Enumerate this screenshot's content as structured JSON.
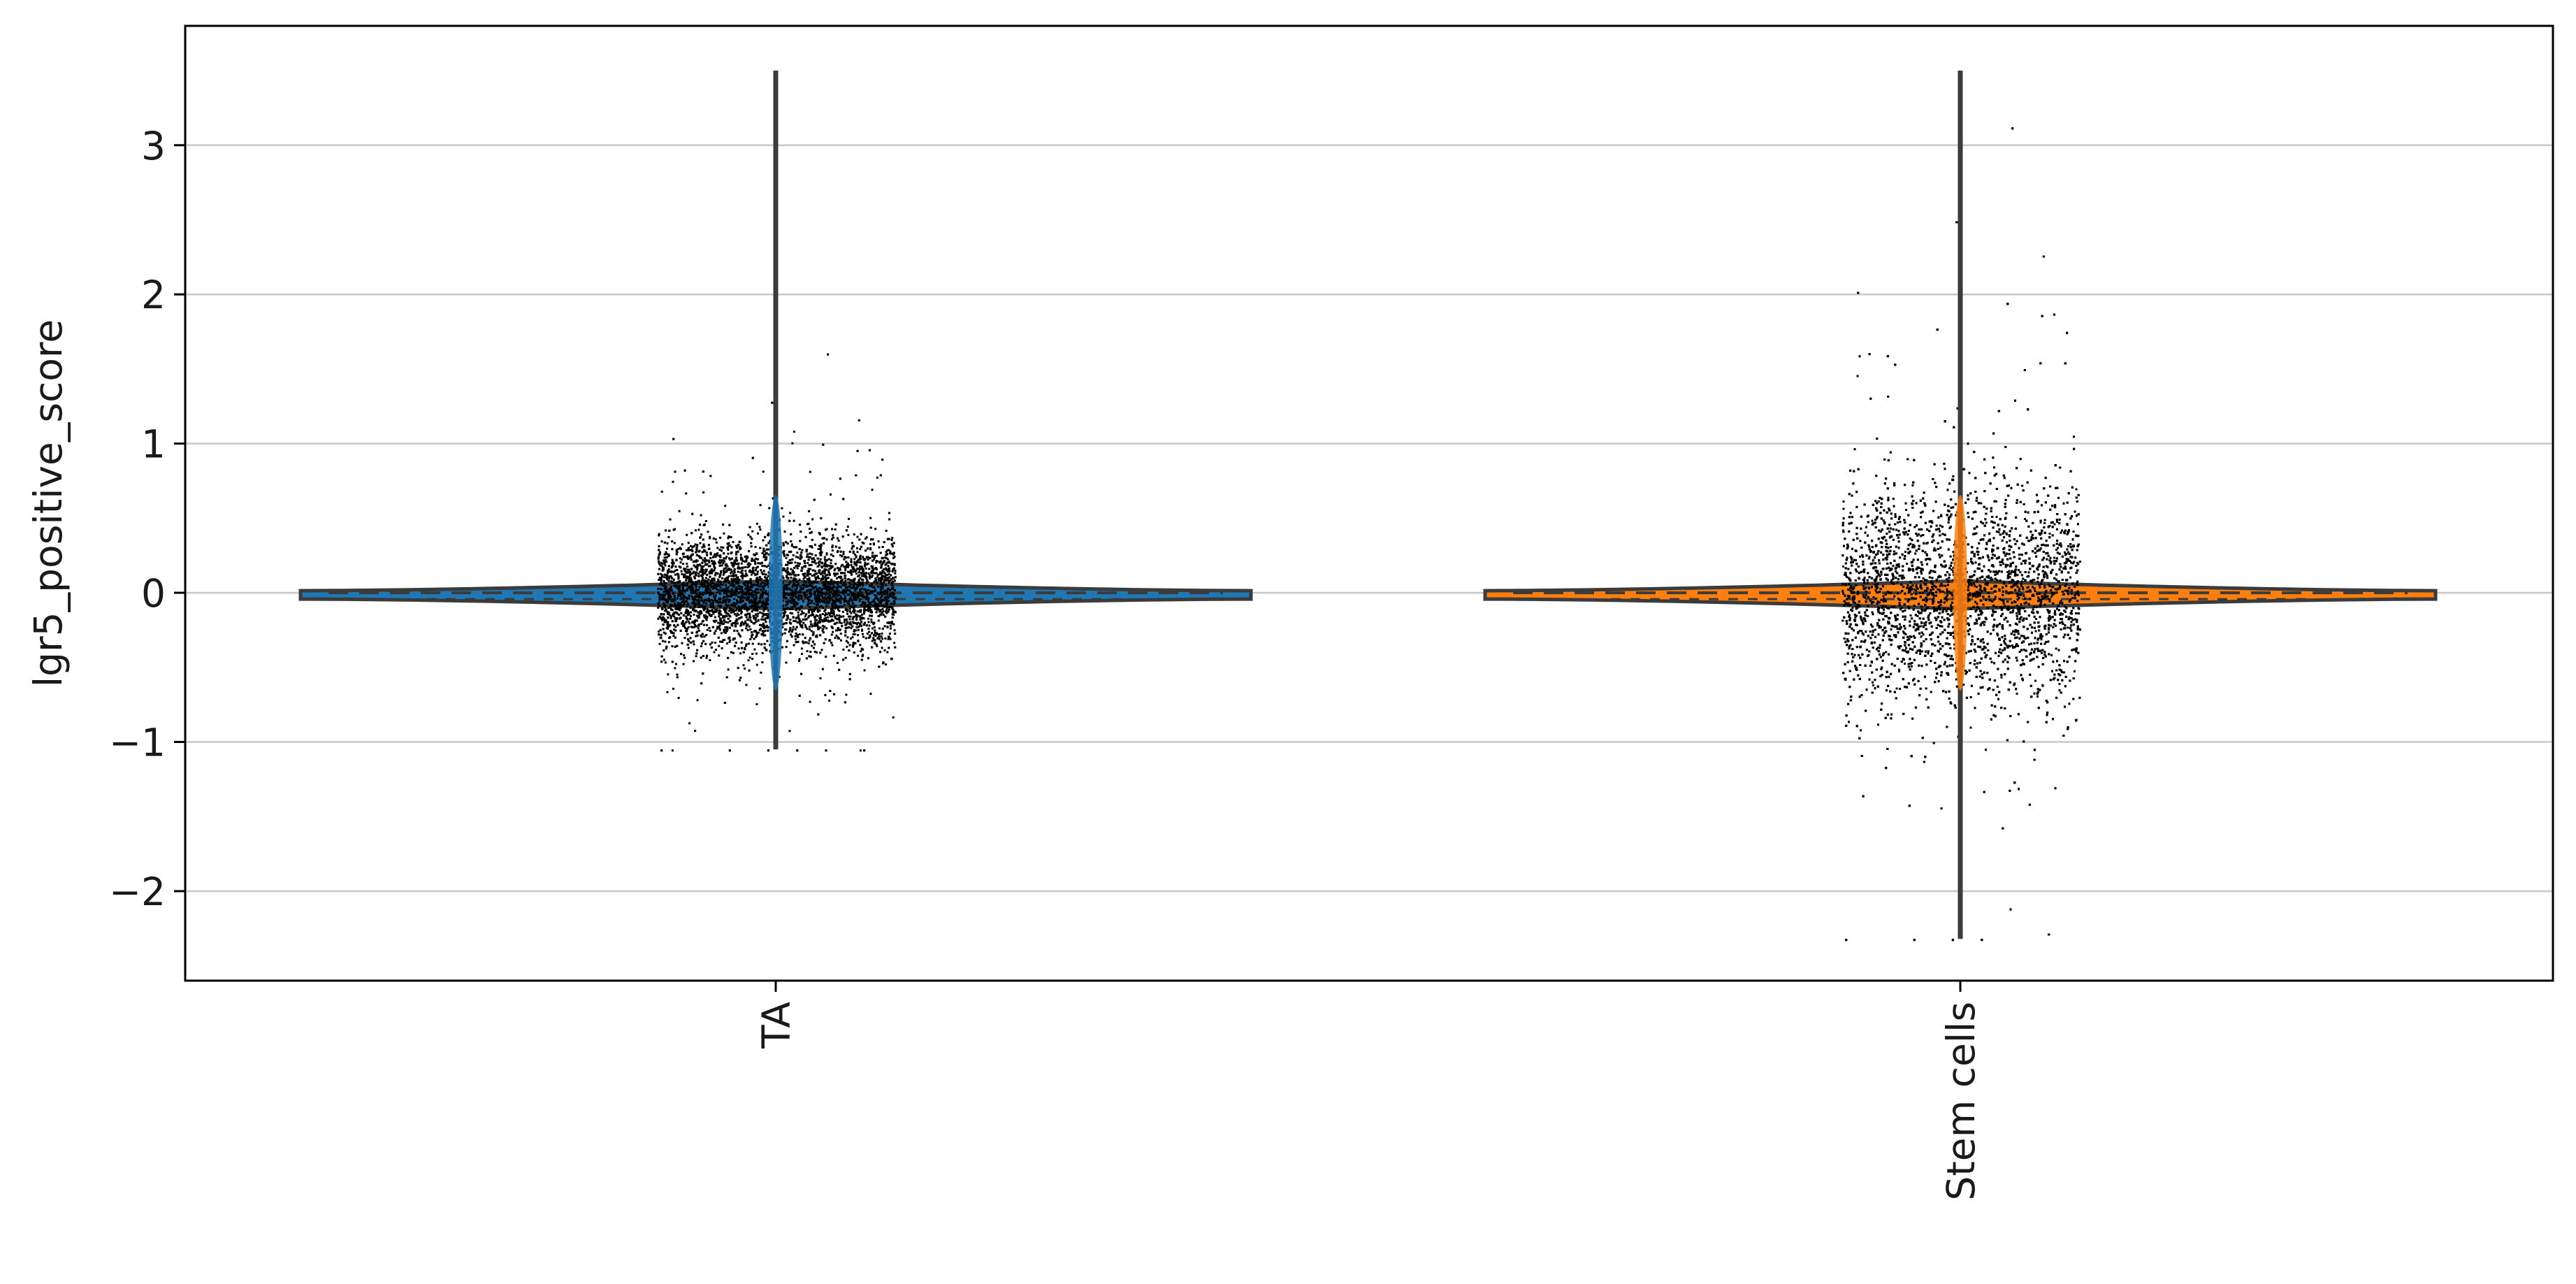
{
  "chart_data": {
    "type": "violin",
    "ylabel": "lgr5_positive_score",
    "xlabel": "",
    "ylim": [
      -2.6,
      3.8
    ],
    "yticks": [
      3,
      2,
      1,
      0,
      -1,
      -2
    ],
    "ytick_labels": [
      "3",
      "2",
      "1",
      "0",
      "−1",
      "−2"
    ],
    "grid": "horizontal",
    "categories": [
      "TA",
      "Stem cells"
    ],
    "series": [
      {
        "category": "TA",
        "color": "#1f77b4",
        "min": -1.05,
        "max": 3.5,
        "median": 0.0,
        "quartiles": [
          -0.1,
          0.07
        ],
        "n_points": 6500,
        "point_sd": 0.18
      },
      {
        "category": "Stem cells",
        "color": "#ff7f0e",
        "min": -2.32,
        "max": 3.5,
        "median": 0.0,
        "quartiles": [
          -0.15,
          0.08
        ],
        "n_points": 9000,
        "point_sd": 0.35
      }
    ],
    "colors": {
      "edge": "#3b3b3b",
      "points": "#000000",
      "grid": "#c8c8c8"
    }
  }
}
